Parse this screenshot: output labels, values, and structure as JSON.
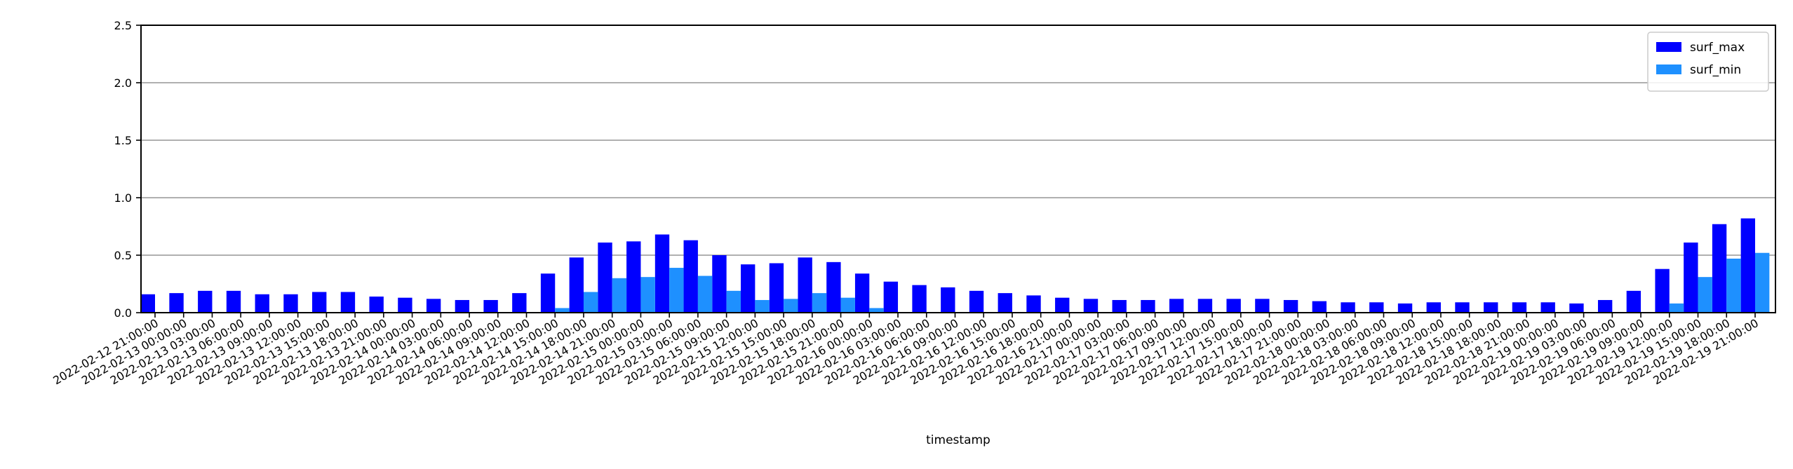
{
  "chart_data": {
    "type": "bar",
    "title": "",
    "xlabel": "timestamp",
    "ylabel": "",
    "ylim": [
      0,
      2.5
    ],
    "yticks": [
      "0.0",
      "0.5",
      "1.0",
      "1.5",
      "2.0",
      "2.5"
    ],
    "ytick_values": [
      0,
      0.5,
      1.0,
      1.5,
      2.0,
      2.5
    ],
    "grid": "horizontal",
    "legend_position": "top-right",
    "categories": [
      "2022-02-12 21:00:00",
      "2022-02-13 00:00:00",
      "2022-02-13 03:00:00",
      "2022-02-13 06:00:00",
      "2022-02-13 09:00:00",
      "2022-02-13 12:00:00",
      "2022-02-13 15:00:00",
      "2022-02-13 18:00:00",
      "2022-02-13 21:00:00",
      "2022-02-14 00:00:00",
      "2022-02-14 03:00:00",
      "2022-02-14 06:00:00",
      "2022-02-14 09:00:00",
      "2022-02-14 12:00:00",
      "2022-02-14 15:00:00",
      "2022-02-14 18:00:00",
      "2022-02-14 21:00:00",
      "2022-02-15 00:00:00",
      "2022-02-15 03:00:00",
      "2022-02-15 06:00:00",
      "2022-02-15 09:00:00",
      "2022-02-15 12:00:00",
      "2022-02-15 15:00:00",
      "2022-02-15 18:00:00",
      "2022-02-15 21:00:00",
      "2022-02-16 00:00:00",
      "2022-02-16 03:00:00",
      "2022-02-16 06:00:00",
      "2022-02-16 09:00:00",
      "2022-02-16 12:00:00",
      "2022-02-16 15:00:00",
      "2022-02-16 18:00:00",
      "2022-02-16 21:00:00",
      "2022-02-17 00:00:00",
      "2022-02-17 03:00:00",
      "2022-02-17 06:00:00",
      "2022-02-17 09:00:00",
      "2022-02-17 12:00:00",
      "2022-02-17 15:00:00",
      "2022-02-17 18:00:00",
      "2022-02-17 21:00:00",
      "2022-02-18 00:00:00",
      "2022-02-18 03:00:00",
      "2022-02-18 06:00:00",
      "2022-02-18 09:00:00",
      "2022-02-18 12:00:00",
      "2022-02-18 15:00:00",
      "2022-02-18 18:00:00",
      "2022-02-18 21:00:00",
      "2022-02-19 00:00:00",
      "2022-02-19 03:00:00",
      "2022-02-19 06:00:00",
      "2022-02-19 09:00:00",
      "2022-02-19 12:00:00",
      "2022-02-19 15:00:00",
      "2022-02-19 18:00:00",
      "2022-02-19 21:00:00"
    ],
    "series": [
      {
        "name": "surf_max",
        "color": "#0000ff",
        "values": [
          0.16,
          0.17,
          0.19,
          0.19,
          0.16,
          0.16,
          0.18,
          0.18,
          0.14,
          0.13,
          0.12,
          0.11,
          0.11,
          0.17,
          0.34,
          0.48,
          0.61,
          0.62,
          0.68,
          0.63,
          0.5,
          0.42,
          0.43,
          0.48,
          0.44,
          0.34,
          0.27,
          0.24,
          0.22,
          0.19,
          0.17,
          0.15,
          0.13,
          0.12,
          0.11,
          0.11,
          0.12,
          0.12,
          0.12,
          0.12,
          0.11,
          0.1,
          0.09,
          0.09,
          0.08,
          0.09,
          0.09,
          0.09,
          0.09,
          0.09,
          0.08,
          0.11,
          0.19,
          0.38,
          0.61,
          0.77,
          0.82
        ]
      },
      {
        "name": "surf_min",
        "color": "#1e90ff",
        "values": [
          0,
          0,
          0,
          0,
          0,
          0,
          0,
          0,
          0,
          0,
          0,
          0,
          0,
          0,
          0.04,
          0.18,
          0.3,
          0.31,
          0.39,
          0.32,
          0.19,
          0.11,
          0.12,
          0.17,
          0.13,
          0.04,
          0,
          0,
          0,
          0,
          0,
          0,
          0,
          0,
          0,
          0,
          0,
          0,
          0,
          0,
          0,
          0,
          0,
          0,
          0,
          0,
          0,
          0,
          0,
          0,
          0,
          0,
          0,
          0.08,
          0.31,
          0.47,
          0.52
        ]
      }
    ]
  }
}
